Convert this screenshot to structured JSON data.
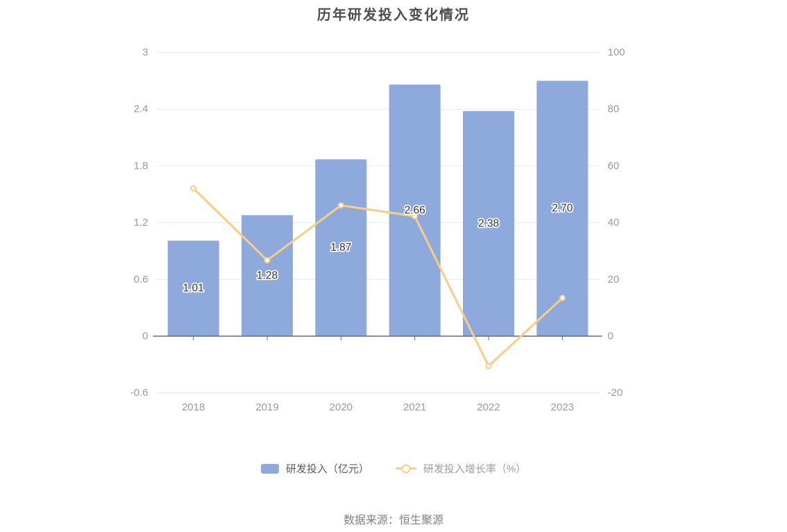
{
  "source": "数据来源：恒生聚源",
  "chart_data": {
    "type": "bar",
    "title": "历年研发投入变化情况",
    "categories": [
      "2018",
      "2019",
      "2020",
      "2021",
      "2022",
      "2023"
    ],
    "series": [
      {
        "name": "研发投入（亿元）",
        "kind": "bar",
        "yaxis": "left",
        "values": [
          1.01,
          1.28,
          1.87,
          2.66,
          2.38,
          2.7
        ],
        "data_labels": [
          "1.01",
          "1.28",
          "1.87",
          "2.66",
          "2.38",
          "2.70"
        ],
        "color": "#8EA9DB"
      },
      {
        "name": "研发投入增长率（%）",
        "kind": "line",
        "yaxis": "right",
        "values": [
          52.1,
          26.73,
          46.09,
          42.25,
          -10.53,
          13.45
        ],
        "color": "#F9CD85"
      }
    ],
    "left_axis": {
      "min": -0.6,
      "max": 3,
      "ticks": [
        3,
        2.4,
        1.8,
        1.2,
        0.6,
        0,
        -0.6
      ]
    },
    "right_axis": {
      "min": -20,
      "max": 100,
      "ticks": [
        100,
        80,
        60,
        40,
        20,
        0,
        -20
      ]
    },
    "grid": true,
    "legend_position": "bottom",
    "style": {
      "grid_color": "#E4EAF4",
      "axis_line_color": "#666B74",
      "axis_text_color": "#999999",
      "bar_label_color": "#333333",
      "title_color": "#4d4d4d"
    }
  }
}
